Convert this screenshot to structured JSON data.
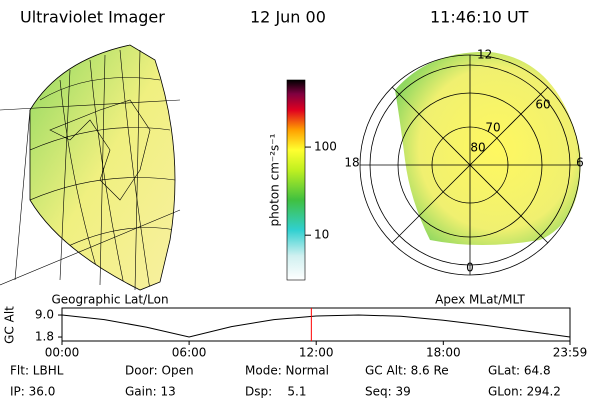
{
  "header": {
    "instrument": "Ultraviolet Imager",
    "date": "12 Jun 00",
    "time": "11:46:10 UT"
  },
  "colorbar": {
    "label": "photon cm⁻²s⁻¹",
    "log_scale": true,
    "lim": [
      3.1,
      577
    ],
    "ticks": [
      10,
      100
    ]
  },
  "geographic_map": {
    "caption": "Geographic Lat/Lon"
  },
  "polar_map": {
    "caption": "Apex MLat/MLT",
    "mlt_labels": [
      "12",
      "18",
      "6",
      "0"
    ],
    "mlat_labels": [
      "60",
      "70",
      "80"
    ]
  },
  "altitude_plot": {
    "y_label": "GC Alt",
    "xlim": [
      0,
      23.98
    ],
    "ylim": [
      0.5,
      11.3
    ],
    "yticks": [
      {
        "value": 9.0,
        "label": "9.0"
      },
      {
        "value": 1.8,
        "label": "1.8"
      }
    ],
    "xticks": [
      {
        "value": 0,
        "label": "00:00"
      },
      {
        "value": 6,
        "label": "06:00"
      },
      {
        "value": 12,
        "label": "12:00"
      },
      {
        "value": 18,
        "label": "18:00"
      },
      {
        "value": 23.98,
        "label": "23:59"
      }
    ],
    "x": [
      0,
      2,
      4,
      6,
      8,
      10,
      12,
      14,
      16,
      18,
      20,
      22,
      23.98
    ],
    "values": [
      9.0,
      7.5,
      5.0,
      1.8,
      5.2,
      7.5,
      8.7,
      9.0,
      8.6,
      7.3,
      5.6,
      3.7,
      1.8
    ],
    "current_time": 11.77,
    "line_color": "#000000",
    "marker_color": "#ff0000"
  },
  "footer": {
    "rows": [
      [
        "Flt: LBHL",
        "Door: Open",
        "Mode: Normal",
        "GC Alt: 8.6 Re",
        "GLat: 64.8"
      ],
      [
        "IP: 36.0",
        "Gain: 13",
        "Dsp:    5.1",
        "Seq: 39",
        "GLon: 294.2"
      ]
    ]
  }
}
